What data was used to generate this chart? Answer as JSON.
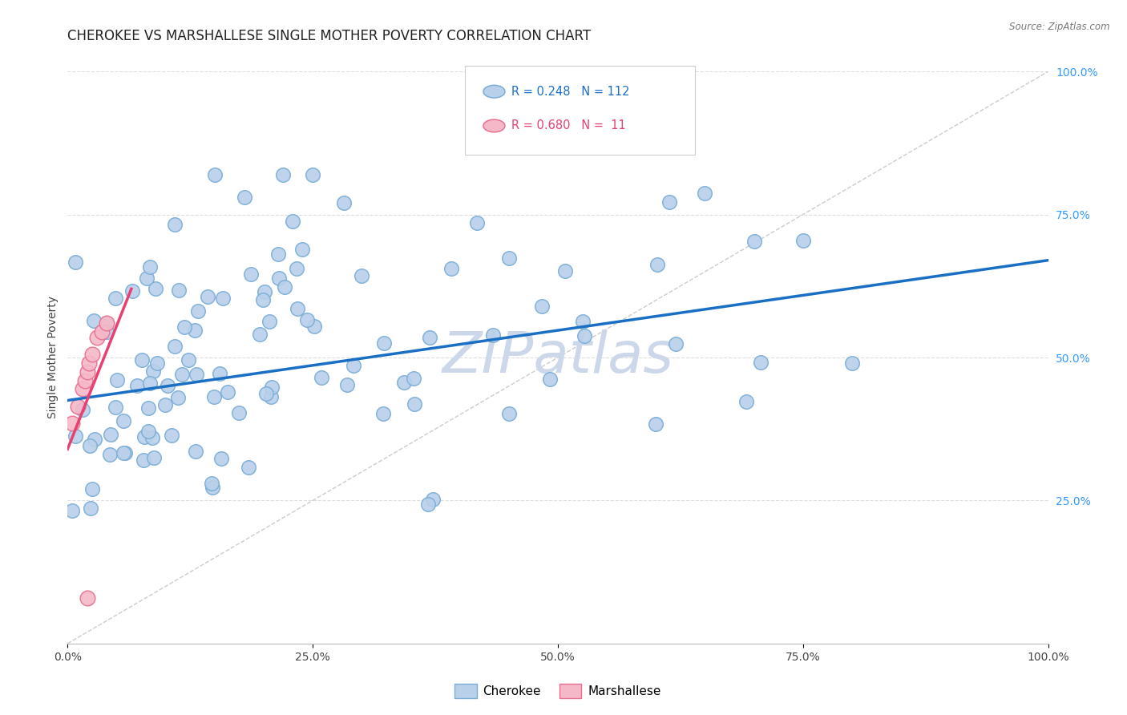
{
  "title": "CHEROKEE VS MARSHALLESE SINGLE MOTHER POVERTY CORRELATION CHART",
  "source": "Source: ZipAtlas.com",
  "ylabel": "Single Mother Poverty",
  "xlim": [
    0.0,
    1.0
  ],
  "ylim": [
    0.0,
    1.0
  ],
  "xtick_labels": [
    "0.0%",
    "25.0%",
    "50.0%",
    "75.0%",
    "100.0%"
  ],
  "xtick_positions": [
    0.0,
    0.25,
    0.5,
    0.75,
    1.0
  ],
  "ytick_labels": [
    "100.0%",
    "75.0%",
    "50.0%",
    "25.0%"
  ],
  "ytick_positions": [
    1.0,
    0.75,
    0.5,
    0.25
  ],
  "cherokee_r": 0.248,
  "cherokee_n": 112,
  "marshallese_r": 0.68,
  "marshallese_n": 11,
  "cherokee_color": "#b8d0ea",
  "cherokee_edge": "#7aadd6",
  "marshallese_color": "#f5b8c8",
  "marshallese_edge": "#e87090",
  "line_cherokee_color": "#1a6fc4",
  "line_marshallese_color": "#e84070",
  "diag_color": "#cccccc",
  "watermark_color": "#ccd8ea",
  "background_color": "#ffffff",
  "grid_color": "#dddddd",
  "title_color": "#222222",
  "ylabel_color": "#444444",
  "ytick_color": "#3399ff",
  "xtick_color": "#444444",
  "source_color": "#777777",
  "legend_text_cherokee": "#1a6fc4",
  "legend_text_marshallese": "#e84070",
  "cherokee_line_x0": 0.0,
  "cherokee_line_x1": 1.0,
  "cherokee_line_y0": 0.425,
  "cherokee_line_y1": 0.67,
  "marshallese_line_x0": 0.0,
  "marshallese_line_x1": 0.065,
  "marshallese_line_y0": 0.34,
  "marshallese_line_y1": 0.62
}
